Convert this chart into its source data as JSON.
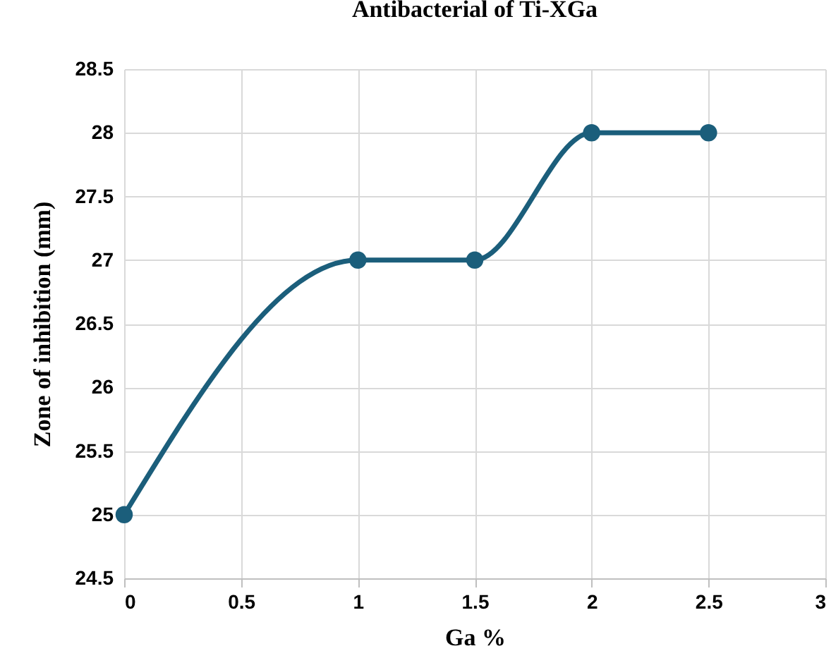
{
  "chart_data": {
    "type": "line",
    "title": "Antibacterial of Ti-XGa",
    "xlabel": "Ga %",
    "ylabel": "Zone of inhibition (mm)",
    "x": [
      0,
      1,
      1.5,
      2,
      2.5
    ],
    "series": [
      {
        "color": "#1b5e7b",
        "values": [
          25,
          27,
          27,
          28,
          28
        ]
      }
    ],
    "xlim": [
      0,
      3
    ],
    "xticks": [
      0,
      0.5,
      1,
      1.5,
      2,
      2.5,
      3
    ],
    "ylim": [
      24.5,
      28.5
    ],
    "yticks": [
      24.5,
      25,
      25.5,
      26,
      26.5,
      27,
      27.5,
      28,
      28.5
    ],
    "grid": true,
    "marker": "circle",
    "line_style": "solid",
    "legend": false
  }
}
